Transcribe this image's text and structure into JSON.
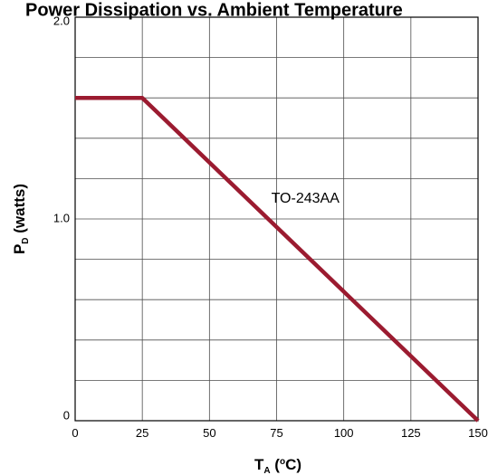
{
  "chart_data": {
    "type": "line",
    "title": "Power Dissipation vs. Ambient Temperature",
    "xlabel": {
      "main": "T",
      "sub": "A",
      "rest": " (",
      "sup": "o",
      "unit": "C)"
    },
    "ylabel": {
      "main": "P",
      "sub": "D",
      "rest": " (watts)"
    },
    "xlim": [
      0,
      150
    ],
    "ylim": [
      0,
      2.0
    ],
    "x_ticks": [
      0,
      25,
      50,
      75,
      100,
      125,
      150
    ],
    "x_tick_labels": [
      "0",
      "25",
      "50",
      "75",
      "100",
      "125",
      "150"
    ],
    "y_ticks": [
      0,
      1.0,
      2.0
    ],
    "y_tick_labels": [
      "0",
      "1.0",
      "2.0"
    ],
    "x_grid": [
      0,
      25,
      50,
      75,
      100,
      125,
      150
    ],
    "y_grid": [
      0,
      0.2,
      0.4,
      0.6,
      0.8,
      1.0,
      1.2,
      1.4,
      1.6,
      1.8,
      2.0
    ],
    "grid": true,
    "line_color": "#9b1b30",
    "series": [
      {
        "name": "TO-243AA",
        "x": [
          0,
          25,
          150
        ],
        "y": [
          1.6,
          1.6,
          0
        ]
      }
    ],
    "annotations": [
      {
        "text": "TO-243AA",
        "x": 73,
        "y": 1.08
      }
    ]
  }
}
